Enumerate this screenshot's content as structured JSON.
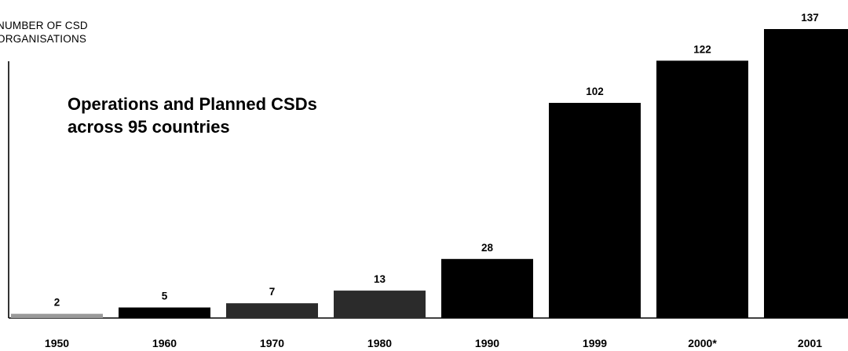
{
  "chart_data": {
    "type": "bar",
    "title": "Operations and Planned CSDs across 95 countries",
    "title_lines": [
      "Operations and Planned CSDs",
      "across 95 countries"
    ],
    "ylabel_lines": [
      "NUMBER OF CSD",
      "ORGANISATIONS"
    ],
    "xlabel": "",
    "categories": [
      "1950",
      "1960",
      "1970",
      "1980",
      "1990",
      "1999",
      "2000*",
      "2001"
    ],
    "values": [
      2,
      5,
      7,
      13,
      28,
      102,
      122,
      137
    ],
    "data_labels": [
      "2",
      "5",
      "7",
      "13",
      "28",
      "102",
      "122",
      "137"
    ],
    "ylim": [
      0,
      137
    ],
    "grid": false,
    "legend": "none",
    "colors": {
      "bar": "#000000",
      "bar_light": "#9a9a9a",
      "bar_mid": "#2b2b2b",
      "axis": "#000000",
      "background": "#ffffff"
    }
  }
}
